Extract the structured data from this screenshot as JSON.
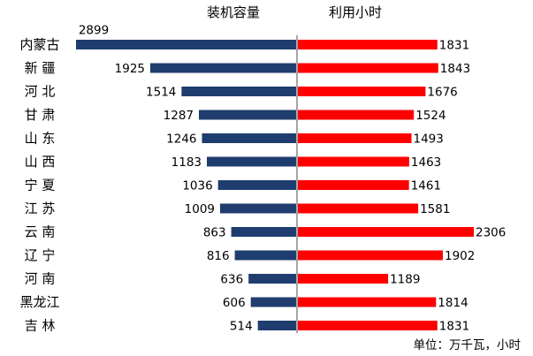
{
  "chart_data": {
    "type": "bar",
    "headers": {
      "left": "装机容量",
      "right": "利用小时"
    },
    "unit_note": "单位：万千瓦，小时",
    "categories": [
      "内蒙古",
      "新 疆",
      "河 北",
      "甘 肃",
      "山 东",
      "山 西",
      "宁 夏",
      "江 苏",
      "云 南",
      "辽 宁",
      "河 南",
      "黑龙江",
      "吉 林"
    ],
    "series": [
      {
        "name": "装机容量",
        "side": "left",
        "color": "#1F3D6E",
        "values": [
          2899,
          1925,
          1514,
          1287,
          1246,
          1183,
          1036,
          1009,
          863,
          816,
          636,
          606,
          514
        ]
      },
      {
        "name": "利用小时",
        "side": "right",
        "color": "#FF0000",
        "values": [
          1831,
          1843,
          1676,
          1524,
          1493,
          1463,
          1461,
          1581,
          2306,
          1902,
          1189,
          1814,
          1831
        ]
      }
    ],
    "center_line_color": "#A6A6A6"
  }
}
